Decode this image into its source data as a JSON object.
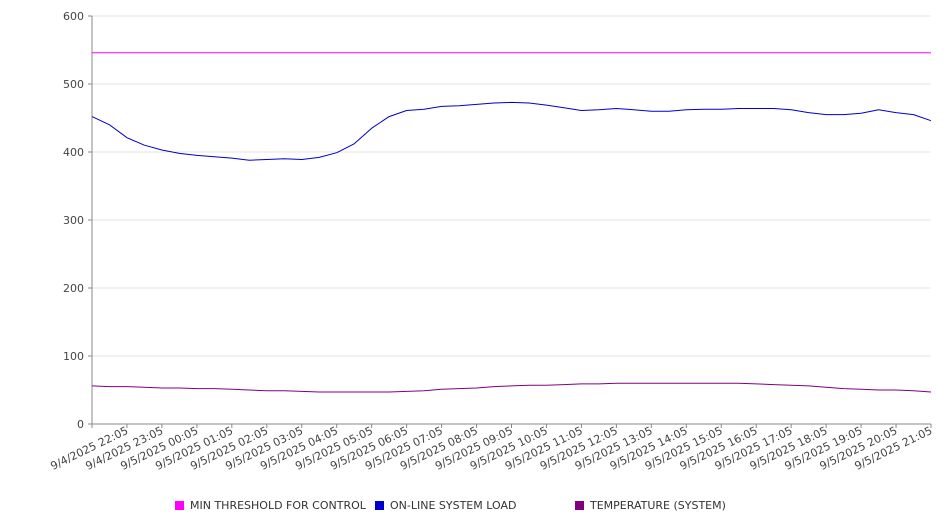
{
  "chart_data": {
    "type": "line",
    "x_tick_labels": [
      "9/4/2025 22:05",
      "9/4/2025 23:05",
      "9/5/2025 00:05",
      "9/5/2025 01:05",
      "9/5/2025 02:05",
      "9/5/2025 03:05",
      "9/5/2025 04:05",
      "9/5/2025 05:05",
      "9/5/2025 06:05",
      "9/5/2025 07:05",
      "9/5/2025 08:05",
      "9/5/2025 09:05",
      "9/5/2025 10:05",
      "9/5/2025 11:05",
      "9/5/2025 12:05",
      "9/5/2025 13:05",
      "9/5/2025 14:05",
      "9/5/2025 15:05",
      "9/5/2025 16:05",
      "9/5/2025 17:05",
      "9/5/2025 18:05",
      "9/5/2025 19:05",
      "9/5/2025 20:05",
      "9/5/2025 21:05"
    ],
    "x_hours_from_first_tick": [
      0,
      0.5,
      1,
      1.5,
      2,
      2.5,
      3,
      3.5,
      4,
      4.5,
      5,
      5.5,
      6,
      6.5,
      7,
      7.5,
      8,
      8.5,
      9,
      9.5,
      10,
      10.5,
      11,
      11.5,
      12,
      12.5,
      13,
      13.5,
      14,
      14.5,
      15,
      15.5,
      16,
      16.5,
      17,
      17.5,
      18,
      18.5,
      19,
      19.5,
      20,
      20.5,
      21,
      21.5,
      22,
      22.5,
      23,
      23.5,
      24
    ],
    "y_ticks": [
      0,
      100,
      200,
      300,
      400,
      500,
      600
    ],
    "ylim": [
      0,
      600
    ],
    "grid": "horizontal",
    "legend_position": "bottom",
    "series": [
      {
        "name": "MIN THRESHOLD FOR CONTROL",
        "color": "#ff00ff",
        "values": [
          546,
          546,
          546,
          546,
          546,
          546,
          546,
          546,
          546,
          546,
          546,
          546,
          546,
          546,
          546,
          546,
          546,
          546,
          546,
          546,
          546,
          546,
          546,
          546,
          546,
          546,
          546,
          546,
          546,
          546,
          546,
          546,
          546,
          546,
          546,
          546,
          546,
          546,
          546,
          546,
          546,
          546,
          546,
          546,
          546,
          546,
          546,
          546,
          546
        ]
      },
      {
        "name": "ON-LINE SYSTEM LOAD",
        "color": "#0000cc",
        "values": [
          452,
          440,
          421,
          410,
          403,
          398,
          395,
          393,
          391,
          388,
          389,
          390,
          389,
          392,
          399,
          412,
          435,
          452,
          461,
          463,
          467,
          468,
          470,
          472,
          473,
          472,
          469,
          465,
          461,
          462,
          464,
          462,
          460,
          460,
          462,
          463,
          463,
          464,
          464,
          464,
          462,
          458,
          455,
          455,
          457,
          462,
          458,
          455,
          446
        ]
      },
      {
        "name": "TEMPERATURE (SYSTEM)",
        "color": "#800080",
        "values": [
          56,
          55,
          55,
          54,
          53,
          53,
          52,
          52,
          51,
          50,
          49,
          49,
          48,
          47,
          47,
          47,
          47,
          47,
          48,
          49,
          51,
          52,
          53,
          55,
          56,
          57,
          57,
          58,
          59,
          59,
          60,
          60,
          60,
          60,
          60,
          60,
          60,
          60,
          59,
          58,
          57,
          56,
          54,
          52,
          51,
          50,
          50,
          49,
          47
        ]
      }
    ]
  }
}
